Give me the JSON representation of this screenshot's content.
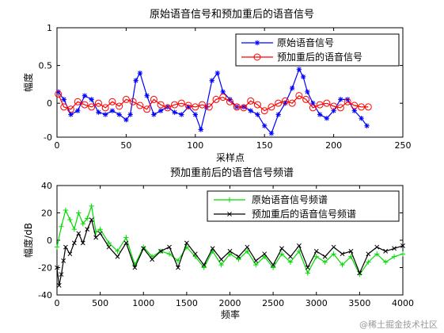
{
  "watermark": "@稀土掘金技术社区",
  "chart_data": [
    {
      "type": "line",
      "title": "原始语音信号和预加重后的语音信号",
      "xlabel": "采样点",
      "ylabel": "幅度",
      "xlim": [
        0,
        250
      ],
      "ylim": [
        -0.45,
        1
      ],
      "xticks": [
        "0",
        "50",
        "100",
        "150",
        "200",
        "250"
      ],
      "yticks": [
        "-0",
        "0",
        "0.5",
        "1"
      ],
      "grid": false,
      "legend_position": "top-right",
      "series": [
        {
          "name": "原始语音信号",
          "color": "#0000ff",
          "marker": "asterisk",
          "x": [
            1,
            5,
            10,
            15,
            20,
            25,
            30,
            35,
            40,
            45,
            50,
            53,
            57,
            60,
            65,
            70,
            75,
            80,
            85,
            90,
            95,
            100,
            104,
            108,
            112,
            116,
            120,
            125,
            130,
            135,
            140,
            145,
            150,
            155,
            160,
            165,
            170,
            175,
            178,
            181,
            185,
            190,
            195,
            200,
            205,
            210,
            215,
            220,
            224
          ],
          "y": [
            0.15,
            0.05,
            -0.15,
            -0.1,
            0.1,
            0.05,
            -0.12,
            -0.15,
            -0.1,
            -0.15,
            -0.22,
            -0.15,
            0.3,
            0.4,
            0.1,
            -0.15,
            -0.1,
            -0.05,
            -0.12,
            -0.15,
            -0.05,
            -0.15,
            -0.35,
            -0.05,
            0.3,
            0.4,
            0.15,
            0.05,
            -0.05,
            -0.05,
            -0.1,
            -0.15,
            -0.3,
            -0.4,
            -0.15,
            0.0,
            0.2,
            0.45,
            0.35,
            0.15,
            0.0,
            -0.15,
            -0.2,
            -0.1,
            0.05,
            0.05,
            -0.1,
            -0.2,
            -0.3
          ]
        },
        {
          "name": "预加重后的语音信号",
          "color": "#ff0000",
          "marker": "circle",
          "x": [
            1,
            5,
            10,
            15,
            20,
            25,
            30,
            35,
            40,
            45,
            50,
            55,
            60,
            65,
            70,
            75,
            80,
            85,
            90,
            95,
            100,
            105,
            110,
            115,
            120,
            125,
            130,
            135,
            140,
            145,
            150,
            155,
            160,
            165,
            170,
            175,
            180,
            185,
            190,
            195,
            200,
            205,
            210,
            215,
            220,
            225
          ],
          "y": [
            0.12,
            -0.05,
            -0.08,
            0.02,
            -0.02,
            -0.05,
            0.0,
            -0.06,
            0.02,
            -0.04,
            0.05,
            0.02,
            -0.03,
            -0.08,
            0.05,
            -0.02,
            -0.06,
            -0.02,
            0.0,
            -0.03,
            -0.05,
            -0.02,
            -0.05,
            0.05,
            0.08,
            0.02,
            -0.05,
            -0.06,
            0.03,
            -0.02,
            -0.1,
            -0.05,
            0.0,
            0.03,
            0.0,
            0.1,
            0.05,
            -0.06,
            -0.02,
            0.0,
            -0.04,
            -0.06,
            0.02,
            -0.03,
            -0.05,
            -0.05
          ]
        }
      ]
    },
    {
      "type": "line",
      "title": "预加重前后的语音信号频谱",
      "xlabel": "频率",
      "ylabel": "幅度/dB",
      "xlim": [
        0,
        4000
      ],
      "ylim": [
        -40,
        40
      ],
      "xticks": [
        "0",
        "500",
        "1000",
        "1500",
        "2000",
        "2500",
        "3000",
        "3500",
        "4000"
      ],
      "yticks": [
        "-40",
        "-20",
        "0",
        "20",
        "40"
      ],
      "grid": false,
      "legend_position": "top-right",
      "series": [
        {
          "name": "原始语音信号频谱",
          "color": "#00dd00",
          "marker": "plus",
          "x": [
            0,
            50,
            100,
            150,
            200,
            250,
            300,
            350,
            400,
            450,
            500,
            600,
            700,
            800,
            900,
            1000,
            1100,
            1200,
            1300,
            1400,
            1500,
            1600,
            1700,
            1800,
            1900,
            2000,
            2100,
            2200,
            2300,
            2400,
            2500,
            2600,
            2700,
            2800,
            2900,
            3000,
            3100,
            3200,
            3300,
            3400,
            3500,
            3600,
            3700,
            3800,
            3900,
            4000
          ],
          "y": [
            -5,
            10,
            22,
            15,
            8,
            20,
            12,
            16,
            25,
            6,
            8,
            -2,
            -8,
            2,
            -18,
            -5,
            -12,
            -8,
            -10,
            -15,
            -5,
            -12,
            -20,
            -8,
            -18,
            -10,
            -14,
            -8,
            -18,
            -12,
            -20,
            -10,
            -16,
            -8,
            -24,
            -12,
            -16,
            -10,
            -18,
            -12,
            -25,
            -16,
            -10,
            -16,
            -12,
            -10
          ]
        },
        {
          "name": "预加重后的语音信号频谱",
          "color": "#000000",
          "marker": "x",
          "x": [
            0,
            25,
            50,
            75,
            100,
            150,
            200,
            250,
            300,
            350,
            400,
            450,
            500,
            600,
            700,
            800,
            900,
            1000,
            1100,
            1200,
            1300,
            1400,
            1500,
            1600,
            1700,
            1800,
            1900,
            2000,
            2100,
            2200,
            2300,
            2400,
            2500,
            2600,
            2700,
            2800,
            2900,
            3000,
            3100,
            3200,
            3300,
            3400,
            3500,
            3600,
            3700,
            3800,
            3900,
            4000
          ],
          "y": [
            -20,
            -33,
            -25,
            -15,
            -5,
            -10,
            -2,
            5,
            -2,
            8,
            15,
            2,
            5,
            -5,
            -12,
            -2,
            -20,
            -6,
            -14,
            -8,
            -5,
            -20,
            -2,
            -10,
            -18,
            -6,
            -14,
            -8,
            -12,
            -5,
            -15,
            -10,
            -18,
            -6,
            -12,
            -4,
            -20,
            -8,
            -12,
            -5,
            -10,
            -8,
            -24,
            -10,
            -5,
            -8,
            -6,
            -4
          ]
        }
      ]
    }
  ]
}
